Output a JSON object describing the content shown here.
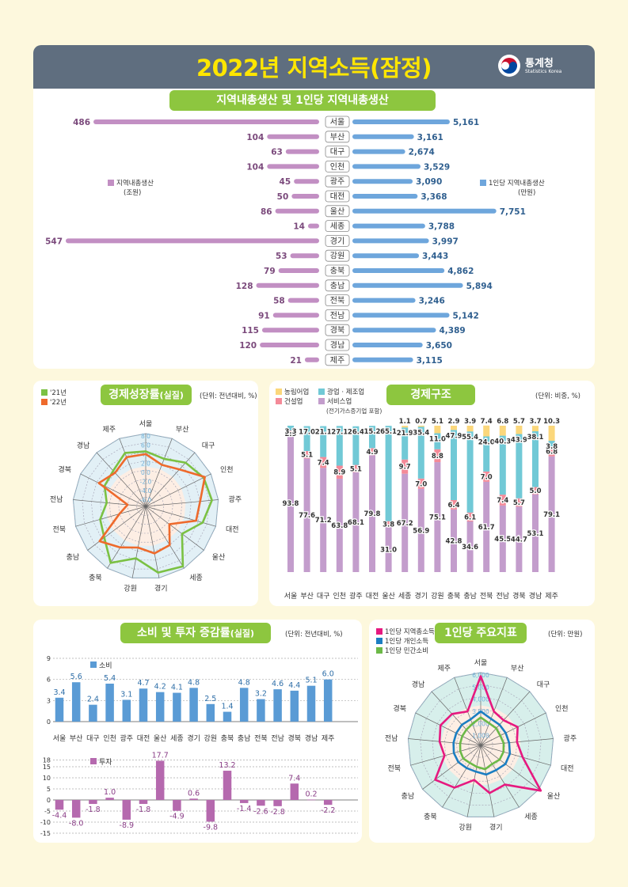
{
  "header": {
    "title": "2022년 지역소득(잠정)",
    "org_name": "통계청",
    "org_sub": "Statistics Korea"
  },
  "grdp_section": {
    "title": "지역내총생산 및 1인당 지역내총생산",
    "legend_left": [
      "지역내총생산",
      "(조원)"
    ],
    "legend_right": [
      "1인당 지역내총생산",
      "(만원)"
    ],
    "colors": {
      "left": "#c28fc3",
      "right": "#6ea6dc"
    }
  },
  "growth_section": {
    "title": "경제성장률",
    "title_suffix": "(실질)",
    "unit": "(단위: 전년대비, %)",
    "legend": [
      "'21년",
      "'22년"
    ],
    "colors": [
      "#7bc143",
      "#ee6a2c"
    ]
  },
  "structure_section": {
    "title": "경제구조",
    "unit": "(단위: 비중, %)",
    "legend": [
      "농림어업",
      "광업 · 제조업",
      "건설업",
      "서비스업"
    ],
    "legend_note": "(전기가스증기업 포함)",
    "colors": {
      "agri": "#fbd77b",
      "mfg": "#71c9d6",
      "const": "#f48a98",
      "service": "#c39dcc"
    }
  },
  "consumption_section": {
    "title": "소비 및 투자 증감률",
    "title_suffix": "(실질)",
    "unit": "(단위: 전년대비, %)",
    "legend_consumption": "소비",
    "legend_investment": "투자",
    "colors": {
      "consumption": "#5a9bd5",
      "investment": "#b569ae"
    }
  },
  "percapita_section": {
    "title": "1인당 주요지표",
    "unit": "(단위: 만원)",
    "legend": [
      "1인당 지역총소득",
      "1인당 개인소득",
      "1인당 민간소비"
    ],
    "colors": [
      "#e6197f",
      "#1b7ec2",
      "#6cb947"
    ]
  },
  "chart_data": [
    {
      "type": "bar",
      "title": "지역내총생산 및 1인당 지역내총생산",
      "categories": [
        "서울",
        "부산",
        "대구",
        "인천",
        "광주",
        "대전",
        "울산",
        "세종",
        "경기",
        "강원",
        "충북",
        "충남",
        "전북",
        "전남",
        "경북",
        "경남",
        "제주"
      ],
      "series": [
        {
          "name": "지역내총생산 (조원)",
          "values": [
            486,
            104,
            63,
            104,
            45,
            50,
            86,
            14,
            547,
            53,
            79,
            128,
            58,
            91,
            115,
            120,
            21
          ]
        },
        {
          "name": "1인당 지역내총생산 (만원)",
          "values": [
            5161,
            3161,
            2674,
            3529,
            3090,
            3368,
            7751,
            3788,
            3997,
            3443,
            4862,
            5894,
            3246,
            5142,
            4389,
            3650,
            3115
          ],
          "labels": [
            "5,161",
            "3,161",
            "2,674",
            "3,529",
            "3,090",
            "3,368",
            "7,751",
            "3,788",
            "3,997",
            "3,443",
            "4,862",
            "5,894",
            "3,246",
            "5,142",
            "4,389",
            "3,650",
            "3,115"
          ]
        }
      ]
    },
    {
      "type": "radar",
      "title": "경제성장률(실질)",
      "axes": [
        "서울",
        "부산",
        "대구",
        "인천",
        "광주",
        "대전",
        "울산",
        "세종",
        "경기",
        "강원",
        "충북",
        "충남",
        "전북",
        "전남",
        "경북",
        "경남",
        "제주"
      ],
      "ticks": [
        "8.0",
        "6.0",
        "4.0",
        "2.0",
        "0.0",
        "-2.0",
        "-4.0",
        "-6.0"
      ],
      "range": [
        -8,
        8
      ],
      "series": [
        {
          "name": "'21년",
          "values": [
            4.1,
            3.2,
            5.0,
            6.2,
            6.6,
            5.0,
            2.0,
            7.5,
            6.8,
            3.6,
            6.6,
            3.4,
            2.4,
            0.6,
            2.1,
            2.6,
            4.6
          ]
        },
        {
          "name": "'22년",
          "values": [
            3.5,
            1.8,
            3.0,
            6.5,
            4.0,
            3.5,
            -1.5,
            2.0,
            2.5,
            1.2,
            2.6,
            4.7,
            -2.0,
            -4.0,
            3.5,
            2.0,
            3.6
          ]
        }
      ]
    },
    {
      "type": "bar",
      "stacked": true,
      "title": "경제구조",
      "categories": [
        "서울",
        "부산",
        "대구",
        "인천",
        "광주",
        "대전",
        "울산",
        "세종",
        "경기",
        "강원",
        "충북",
        "충남",
        "전북",
        "전남",
        "경북",
        "경남",
        "제주"
      ],
      "series": [
        {
          "name": "서비스업",
          "values": [
            93.8,
            77.6,
            71.2,
            63.8,
            68.1,
            79.8,
            31.0,
            67.2,
            56.9,
            75.1,
            42.8,
            34.6,
            61.7,
            45.5,
            44.7,
            53.1,
            79.1
          ]
        },
        {
          "name": "건설업",
          "values": [
            2.9,
            5.1,
            7.4,
            8.9,
            5.1,
            4.9,
            3.8,
            9.7,
            7.0,
            8.8,
            6.4,
            6.1,
            7.0,
            7.4,
            5.7,
            5.0,
            6.8
          ]
        },
        {
          "name": "광업 · 제조업",
          "values": [
            3.3,
            17.0,
            21.1,
            27.1,
            26.4,
            15.2,
            65.1,
            21.9,
            35.4,
            11.0,
            47.9,
            55.4,
            24.0,
            40.3,
            43.9,
            38.1,
            3.8
          ]
        },
        {
          "name": "농림어업",
          "values": [
            0,
            0,
            0,
            0,
            0,
            0,
            0,
            1.1,
            0.7,
            5.1,
            2.9,
            3.9,
            7.4,
            6.8,
            5.7,
            3.7,
            10.3
          ]
        }
      ]
    },
    {
      "type": "bar",
      "title": "소비 증감률(실질)",
      "categories": [
        "서울",
        "부산",
        "대구",
        "인천",
        "광주",
        "대전",
        "울산",
        "세종",
        "경기",
        "강원",
        "충북",
        "충남",
        "전북",
        "전남",
        "경북",
        "경남",
        "제주"
      ],
      "values": [
        3.4,
        5.6,
        2.4,
        5.4,
        3.1,
        4.7,
        4.2,
        4.1,
        4.8,
        2.5,
        1.4,
        4.8,
        3.2,
        4.6,
        4.4,
        5.1,
        6.0
      ],
      "ylim": [
        0,
        9
      ],
      "yticks": [
        "0",
        "3",
        "6",
        "9"
      ]
    },
    {
      "type": "bar",
      "title": "투자 증감률(실질)",
      "categories": [
        "서울",
        "부산",
        "대구",
        "인천",
        "광주",
        "대전",
        "울산",
        "세종",
        "경기",
        "강원",
        "충북",
        "충남",
        "전북",
        "전남",
        "경북",
        "경남",
        "제주"
      ],
      "values": [
        -4.4,
        -8.0,
        -1.8,
        1.0,
        -8.9,
        -1.8,
        17.7,
        -4.9,
        0.6,
        -9.8,
        13.2,
        -1.4,
        -2.6,
        -2.8,
        7.4,
        0.2,
        -2.2
      ],
      "ylim": [
        -15,
        18
      ],
      "yticks": [
        "18",
        "15",
        "10",
        "5",
        "0",
        "-5",
        "-10",
        "-15"
      ]
    },
    {
      "type": "radar",
      "title": "1인당 주요지표",
      "axes": [
        "서울",
        "부산",
        "대구",
        "인천",
        "광주",
        "대전",
        "울산",
        "세종",
        "경기",
        "강원",
        "충북",
        "충남",
        "전북",
        "전남",
        "경북",
        "경남",
        "제주"
      ],
      "ticks": [
        "6,000",
        "5,000",
        "4,000",
        "3,000",
        "2,000",
        "1,000"
      ],
      "range": [
        0,
        6000
      ],
      "series": [
        {
          "name": "1인당 지역총소득",
          "values": [
            5700,
            3000,
            2800,
            3400,
            3000,
            3600,
            6200,
            3800,
            4000,
            2900,
            4100,
            4700,
            3100,
            3400,
            3700,
            3500,
            3000
          ]
        },
        {
          "name": "1인당 개인소득",
          "values": [
            2800,
            2350,
            2300,
            2300,
            2350,
            2500,
            2550,
            2400,
            2450,
            2200,
            2200,
            2300,
            2300,
            2250,
            2250,
            2300,
            2300
          ]
        },
        {
          "name": "1인당 민간소비",
          "values": [
            2300,
            1950,
            1900,
            1800,
            1900,
            1950,
            1950,
            1800,
            2000,
            1800,
            1700,
            1800,
            1750,
            1700,
            1700,
            1750,
            1900
          ]
        }
      ]
    }
  ]
}
